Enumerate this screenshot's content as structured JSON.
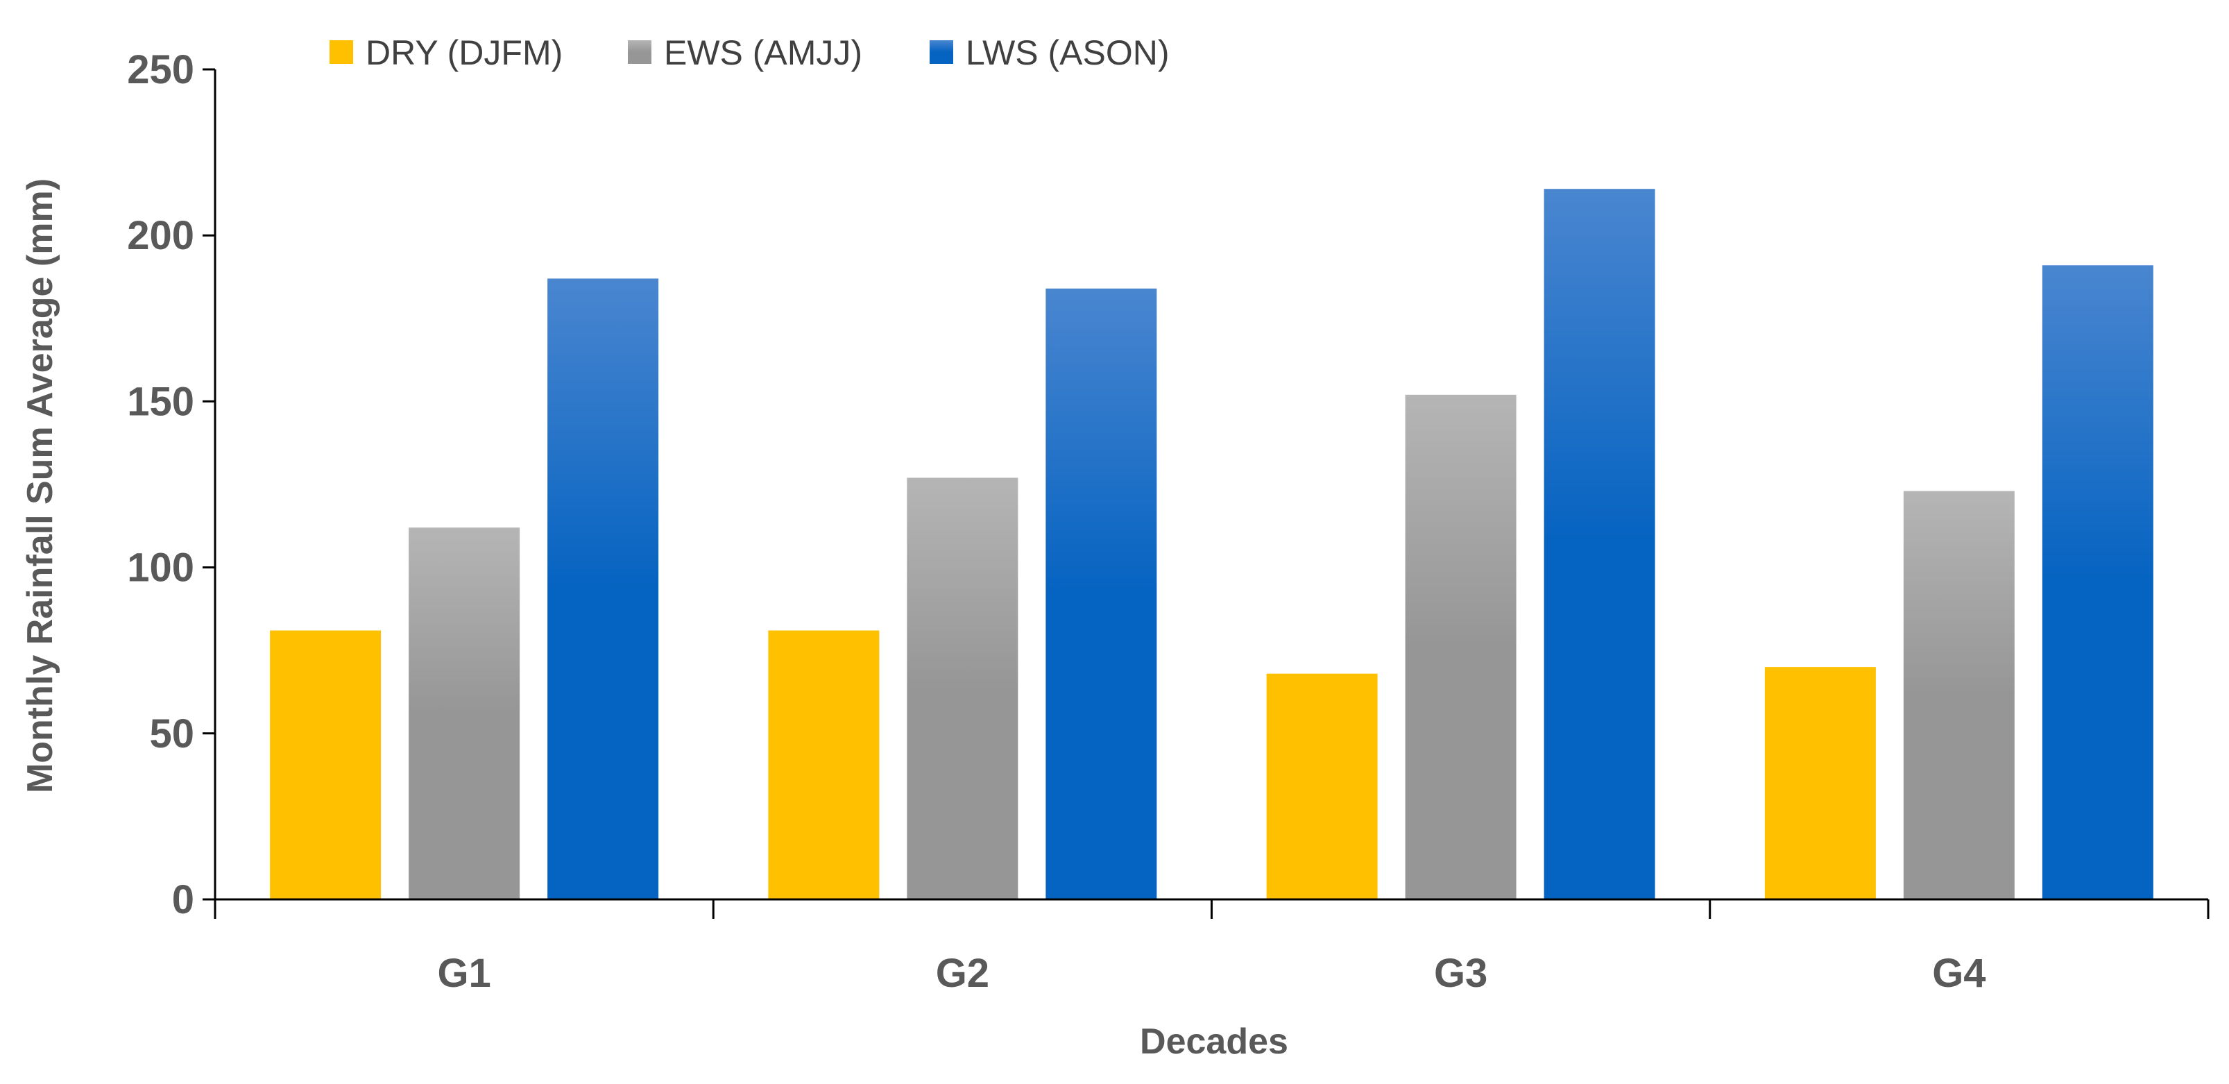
{
  "chart_data": {
    "type": "bar",
    "title": "",
    "xlabel": "Decades",
    "ylabel": "Monthly Rainfall Sum Average  (mm)",
    "ylim": [
      0,
      250
    ],
    "yticks": [
      0,
      50,
      100,
      150,
      200,
      250
    ],
    "grid": false,
    "legend_position": "top",
    "categories": [
      "G1",
      "G2",
      "G3",
      "G4"
    ],
    "series": [
      {
        "name": "DRY (DJFM)",
        "color": "#FFC000",
        "color_light": "#FFC000",
        "values": [
          81,
          81,
          68,
          70
        ]
      },
      {
        "name": "EWS (AMJJ)",
        "color": "#969696",
        "color_light": "#B5B5B5",
        "values": [
          112,
          127,
          152,
          123
        ]
      },
      {
        "name": "LWS (ASON)",
        "color": "#0563C1",
        "color_light": "#4A86D0",
        "values": [
          187,
          184,
          214,
          191
        ]
      }
    ]
  }
}
